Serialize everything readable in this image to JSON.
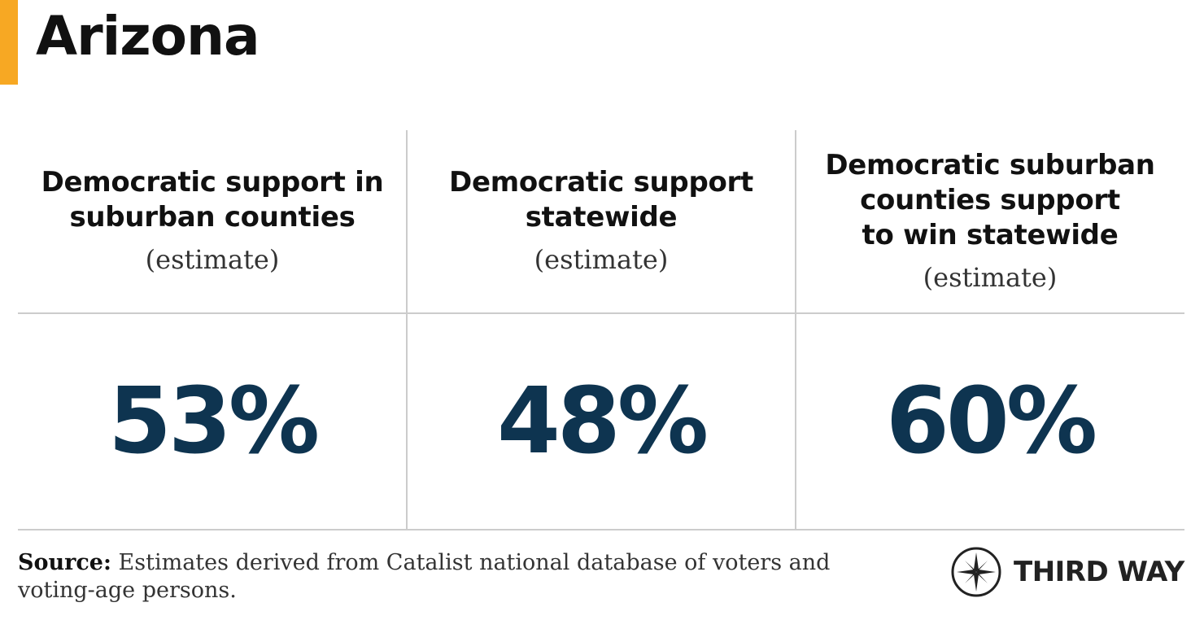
{
  "title": "Arizona",
  "colors": {
    "accent": "#f7a823",
    "value": "#0e3450",
    "divider": "#cccccc"
  },
  "columns": [
    {
      "label": "Democratic support in\nsuburban counties",
      "note": "(estimate)",
      "value": "53%"
    },
    {
      "label": "Democratic support\nstatewide",
      "note": "(estimate)",
      "value": "48%"
    },
    {
      "label": "Democratic suburban\ncounties support\nto win statewide",
      "note": "(estimate)",
      "value": "60%"
    }
  ],
  "footer": {
    "source_label": "Source:",
    "source_text": "Estimates derived from Catalist national database of voters and voting-age persons."
  },
  "logo": {
    "icon": "compass-icon",
    "text": "THIRD WAY"
  }
}
